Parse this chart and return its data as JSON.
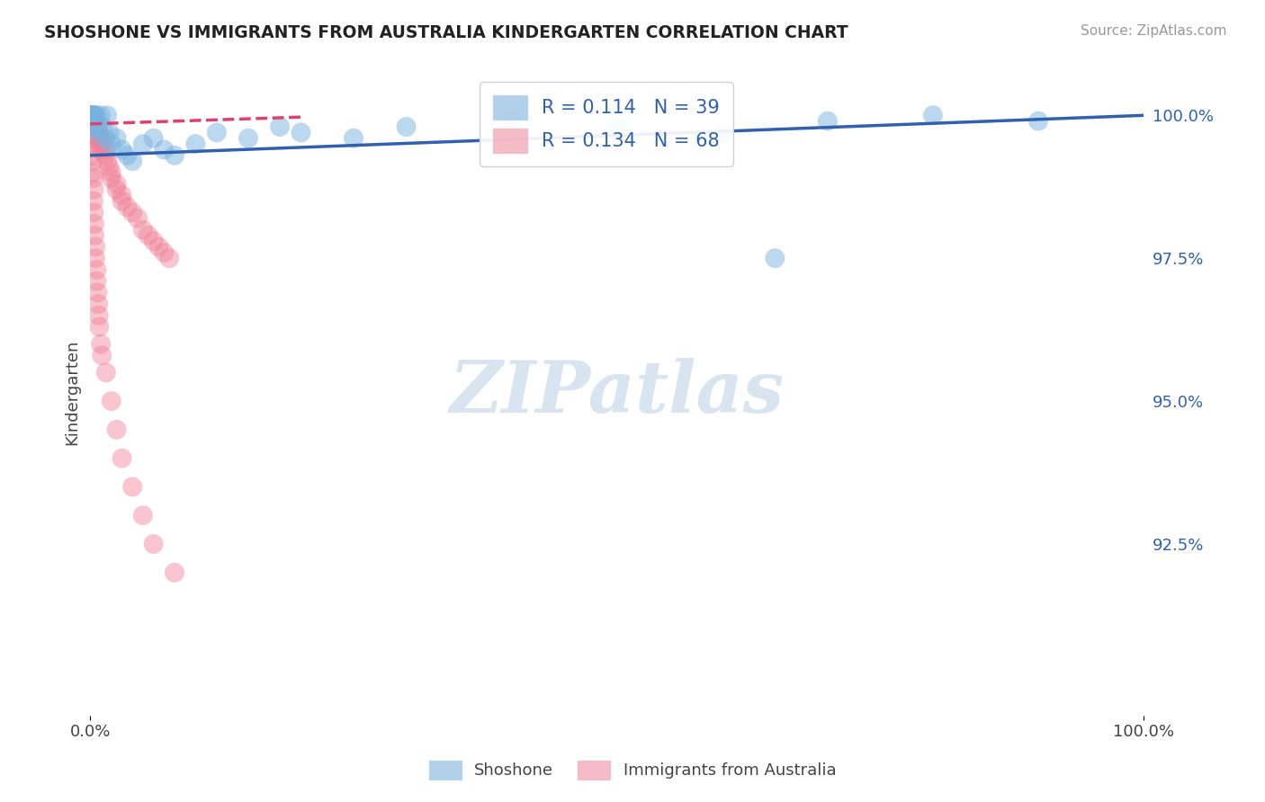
{
  "title": "SHOSHONE VS IMMIGRANTS FROM AUSTRALIA KINDERGARTEN CORRELATION CHART",
  "source": "Source: ZipAtlas.com",
  "ylabel": "Kindergarten",
  "right_yticks": [
    100.0,
    97.5,
    95.0,
    92.5
  ],
  "right_yticklabels": [
    "100.0%",
    "97.5%",
    "95.0%",
    "92.5%"
  ],
  "shoshone_x": [
    0.1,
    0.15,
    0.2,
    0.25,
    0.3,
    0.35,
    0.4,
    0.5,
    0.6,
    0.7,
    0.8,
    1.0,
    1.2,
    1.4,
    1.6,
    1.8,
    2.0,
    2.5,
    3.0,
    3.5,
    4.0,
    5.0,
    6.0,
    7.0,
    8.0,
    10.0,
    12.0,
    15.0,
    18.0,
    20.0,
    25.0,
    30.0,
    40.0,
    50.0,
    60.0,
    65.0,
    70.0,
    80.0,
    90.0
  ],
  "shoshone_y": [
    100.0,
    100.0,
    100.0,
    99.9,
    99.8,
    100.0,
    100.0,
    99.9,
    100.0,
    99.8,
    99.7,
    100.0,
    99.8,
    99.6,
    100.0,
    99.7,
    99.5,
    99.6,
    99.4,
    99.3,
    99.2,
    99.5,
    99.6,
    99.4,
    99.3,
    99.5,
    99.7,
    99.6,
    99.8,
    99.7,
    99.6,
    99.8,
    99.9,
    99.8,
    99.7,
    97.5,
    99.9,
    100.0,
    99.9
  ],
  "immigrants_x": [
    0.05,
    0.1,
    0.1,
    0.1,
    0.15,
    0.2,
    0.2,
    0.25,
    0.3,
    0.3,
    0.35,
    0.4,
    0.5,
    0.5,
    0.6,
    0.7,
    0.8,
    0.9,
    1.0,
    1.0,
    1.2,
    1.4,
    1.5,
    1.6,
    1.8,
    2.0,
    2.0,
    2.5,
    2.5,
    3.0,
    3.0,
    3.5,
    4.0,
    4.5,
    5.0,
    5.5,
    6.0,
    6.5,
    7.0,
    7.5,
    0.15,
    0.15,
    0.2,
    0.25,
    0.3,
    0.35,
    0.3,
    0.35,
    0.4,
    0.4,
    0.5,
    0.5,
    0.6,
    0.6,
    0.7,
    0.75,
    0.8,
    0.85,
    1.0,
    1.1,
    1.5,
    2.0,
    2.5,
    3.0,
    4.0,
    5.0,
    6.0,
    8.0
  ],
  "immigrants_y": [
    100.0,
    100.0,
    99.9,
    99.8,
    100.0,
    99.9,
    99.8,
    100.0,
    99.9,
    99.7,
    99.8,
    99.9,
    99.7,
    99.6,
    99.8,
    99.6,
    99.7,
    99.5,
    99.6,
    99.4,
    99.5,
    99.3,
    99.4,
    99.2,
    99.1,
    99.0,
    98.9,
    98.8,
    98.7,
    98.6,
    98.5,
    98.4,
    98.3,
    98.2,
    98.0,
    97.9,
    97.8,
    97.7,
    97.6,
    97.5,
    99.5,
    99.3,
    99.2,
    99.0,
    98.9,
    98.7,
    98.5,
    98.3,
    98.1,
    97.9,
    97.7,
    97.5,
    97.3,
    97.1,
    96.9,
    96.7,
    96.5,
    96.3,
    96.0,
    95.8,
    95.5,
    95.0,
    94.5,
    94.0,
    93.5,
    93.0,
    92.5,
    92.0
  ],
  "blue_scatter_color": "#7ab3e0",
  "pink_scatter_color": "#f08098",
  "blue_line_color": "#3060b0",
  "pink_line_color": "#e04070",
  "legend_blue_color": "#90bce0",
  "legend_pink_color": "#f0a0b0",
  "R_blue": 0.114,
  "N_blue": 39,
  "R_pink": 0.134,
  "N_pink": 68,
  "label_blue": "Shoshone",
  "label_pink": "Immigrants from Australia",
  "bg_color": "#ffffff",
  "grid_color": "#c0d0e0",
  "watermark_color": "#d8e4f0",
  "xmin": 0.0,
  "xmax": 100.0,
  "ymin": 89.5,
  "ymax": 100.8,
  "blue_trend_x0": 0.0,
  "blue_trend_y0": 99.3,
  "blue_trend_x1": 100.0,
  "blue_trend_y1": 100.0,
  "pink_trend_x0": 0.0,
  "pink_trend_y0": 99.85,
  "pink_trend_x1": 20.0,
  "pink_trend_y1": 99.97
}
